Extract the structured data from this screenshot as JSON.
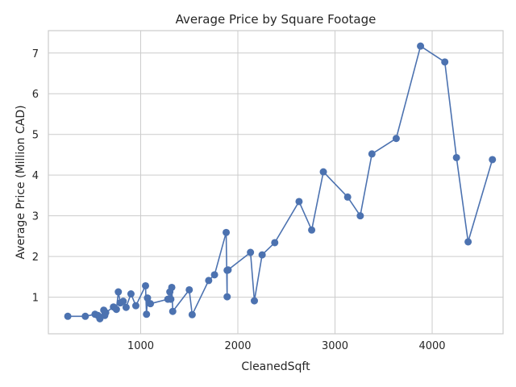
{
  "chart_data": {
    "type": "line",
    "title": "Average Price by Square Footage",
    "xlabel": "CleanedSqft",
    "ylabel": "Average Price (Million CAD)",
    "xlim": [
      50,
      4730
    ],
    "ylim": [
      0.1,
      7.55
    ],
    "xticks": [
      1000,
      2000,
      3000,
      4000
    ],
    "yticks": [
      1,
      2,
      3,
      4,
      5,
      6,
      7
    ],
    "grid": true,
    "line_color": "#4c72b0",
    "series": [
      {
        "name": "",
        "x": [
          250,
          430,
          530,
          560,
          580,
          620,
          630,
          640,
          720,
          750,
          770,
          790,
          820,
          850,
          900,
          950,
          1050,
          1060,
          1070,
          1100,
          1280,
          1300,
          1310,
          1320,
          1330,
          1500,
          1530,
          1700,
          1760,
          1880,
          1890,
          1890,
          1900,
          2130,
          2170,
          2250,
          2380,
          2630,
          2760,
          2880,
          3130,
          3260,
          3380,
          3630,
          3880,
          4130,
          4250,
          4370,
          4620
        ],
        "y": [
          0.53,
          0.53,
          0.58,
          0.55,
          0.47,
          0.68,
          0.55,
          0.62,
          0.76,
          0.7,
          1.13,
          0.86,
          0.9,
          0.75,
          1.08,
          0.79,
          1.28,
          0.58,
          0.98,
          0.84,
          0.95,
          1.13,
          0.95,
          1.24,
          0.65,
          1.18,
          0.57,
          1.41,
          1.55,
          2.59,
          1.01,
          1.66,
          1.67,
          2.1,
          0.91,
          2.04,
          2.34,
          3.35,
          2.65,
          4.08,
          3.46,
          3.0,
          4.52,
          4.9,
          7.17,
          6.78,
          4.43,
          2.36,
          4.38
        ]
      }
    ]
  }
}
